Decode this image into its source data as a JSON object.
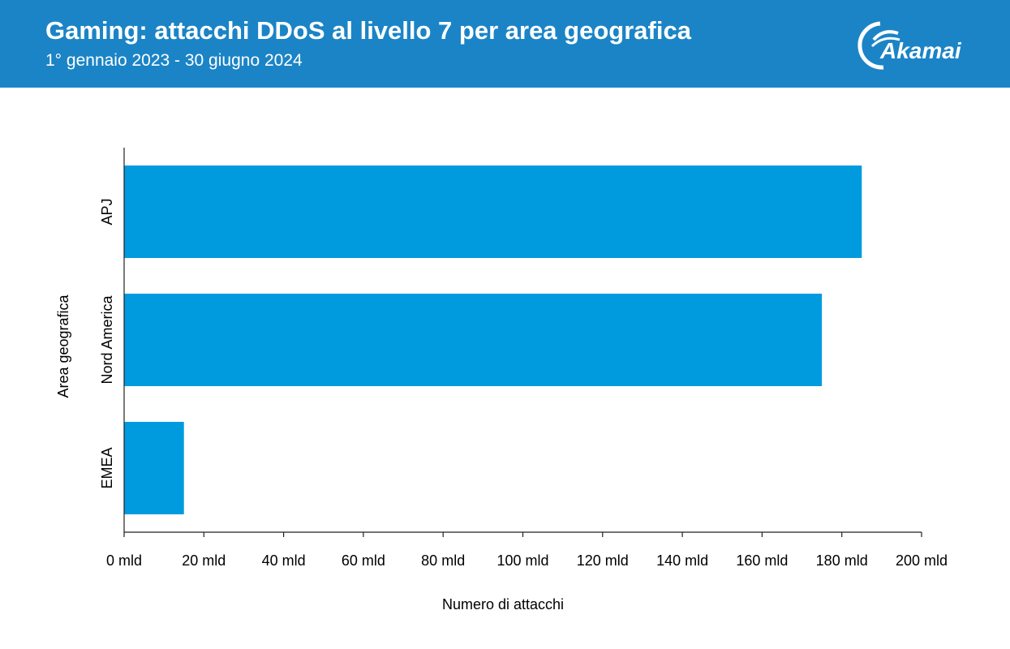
{
  "header": {
    "title": "Gaming: attacchi DDoS al livello 7 per area geografica",
    "subtitle": "1° gennaio 2023 - 30 giugno 2024",
    "logo_text": "Akamai",
    "background_color": "#1b84c6"
  },
  "chart_data": {
    "type": "bar",
    "orientation": "horizontal",
    "categories": [
      "APJ",
      "Nord America",
      "EMEA"
    ],
    "values": [
      185,
      175,
      15
    ],
    "value_unit": "mld",
    "xlabel": "Numero di attacchi",
    "ylabel": "Area geografica",
    "xlim": [
      0,
      200
    ],
    "xticks": [
      "0 mld",
      "20 mld",
      "40 mld",
      "60 mld",
      "80 mld",
      "100 mld",
      "120 mld",
      "140 mld",
      "160 mld",
      "180 mld",
      "200 mld"
    ],
    "bar_color": "#009bdf",
    "grid": false
  }
}
